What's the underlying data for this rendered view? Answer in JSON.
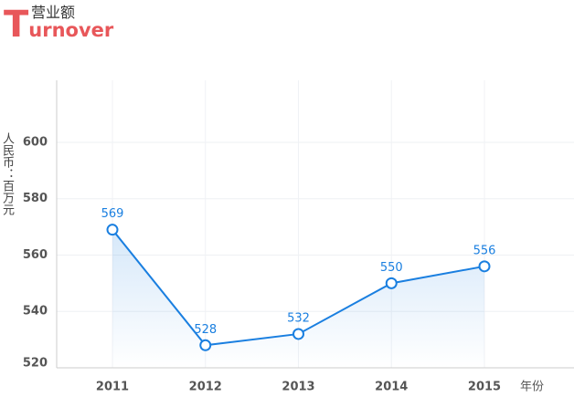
{
  "header": {
    "title_cn": "营业额",
    "title_en": "Turnover"
  },
  "chart_data": {
    "type": "line",
    "y_label": "人民币：百万元",
    "x_label": "年份",
    "categories": [
      "2011",
      "2012",
      "2013",
      "2014",
      "2015"
    ],
    "series": [
      {
        "name": "营业额",
        "color": "#1a7fe0",
        "values": [
          569,
          528,
          532,
          550,
          556
        ]
      }
    ],
    "ylim": [
      520,
      622
    ],
    "yticks": [
      520,
      540,
      560,
      580,
      600
    ],
    "grid": true
  }
}
